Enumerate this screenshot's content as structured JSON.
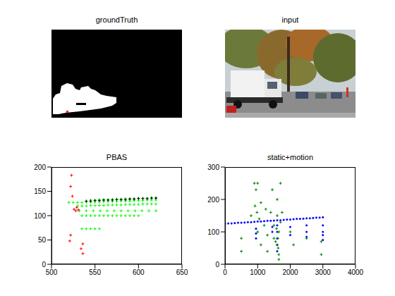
{
  "chart_data": [
    {
      "type": "image",
      "title": "groundTruth"
    },
    {
      "type": "image",
      "title": "input"
    },
    {
      "type": "scatter",
      "title": "PBAS",
      "xlim": [
        500,
        650
      ],
      "xticks": [
        500,
        550,
        600,
        650
      ],
      "ylim": [
        0,
        200
      ],
      "yticks": [
        0,
        50,
        100,
        150,
        200
      ],
      "series": [
        {
          "color": "#00ff00",
          "marker": "plus",
          "x": [
            520,
            525,
            530,
            535,
            540,
            545,
            550,
            555,
            560,
            565,
            570,
            575,
            580,
            585,
            590,
            595,
            600,
            605,
            610,
            615,
            620,
            530,
            535,
            540,
            545,
            550,
            555,
            560,
            565,
            570,
            575,
            580,
            585,
            590,
            595,
            600,
            605,
            610,
            615,
            620,
            532,
            540,
            548,
            556,
            564,
            572,
            580,
            588,
            596,
            604,
            612,
            620,
            535,
            540,
            545,
            550,
            555,
            560,
            565,
            570,
            575,
            580,
            585,
            590,
            595,
            600,
            535,
            540,
            545,
            550,
            555,
            545,
            550,
            555,
            560,
            565,
            570,
            575,
            580,
            585,
            590,
            595,
            600,
            605,
            610,
            615,
            620
          ],
          "values": [
            127,
            127,
            127,
            127,
            128,
            128,
            128,
            128,
            129,
            129,
            129,
            129,
            130,
            130,
            130,
            131,
            131,
            131,
            132,
            132,
            132,
            120,
            120,
            120,
            121,
            121,
            121,
            121,
            122,
            122,
            122,
            122,
            123,
            123,
            123,
            123,
            124,
            124,
            124,
            124,
            110,
            110,
            110,
            110,
            110,
            110,
            110,
            110,
            110,
            110,
            110,
            110,
            100,
            100,
            100,
            100,
            100,
            100,
            100,
            100,
            100,
            100,
            100,
            100,
            100,
            100,
            73,
            73,
            73,
            73,
            73,
            132,
            132,
            133,
            133,
            133,
            134,
            134,
            134,
            135,
            135,
            135,
            136,
            136,
            136,
            137,
            137
          ]
        },
        {
          "color": "#000000",
          "marker": "plus",
          "x": [
            540,
            545,
            550,
            555,
            560,
            565,
            570,
            575,
            580,
            585,
            590,
            595,
            600,
            605,
            610,
            615,
            620
          ],
          "values": [
            130,
            130,
            131,
            131,
            132,
            132,
            132,
            133,
            133,
            133,
            134,
            134,
            135,
            135,
            135,
            136,
            136
          ]
        },
        {
          "color": "#ff0000",
          "marker": "plus",
          "x": [
            523,
            522,
            524,
            526,
            528,
            522,
            521,
            536,
            534,
            536,
            529,
            531
          ],
          "values": [
            183,
            160,
            140,
            113,
            110,
            60,
            48,
            42,
            32,
            22,
            117,
            112
          ]
        }
      ]
    },
    {
      "type": "scatter",
      "title": "static+motion",
      "xlim": [
        0,
        4000
      ],
      "xticks": [
        0,
        1000,
        2000,
        3000,
        4000
      ],
      "ylim": [
        0,
        300
      ],
      "yticks": [
        0,
        100,
        200,
        300
      ],
      "series": [
        {
          "color": "#0000ff",
          "marker": "dot",
          "x": [
            0,
            100,
            200,
            300,
            400,
            500,
            600,
            700,
            800,
            900,
            1000,
            1100,
            1200,
            1300,
            1400,
            1500,
            1600,
            1700,
            1800,
            1900,
            2000,
            2100,
            2200,
            2300,
            2400,
            2500,
            2600,
            2700,
            2800,
            2900,
            3000,
            950,
            950,
            950,
            1450,
            1450,
            1600,
            1600,
            1600,
            1600,
            1600,
            2000,
            2000,
            2500,
            2500,
            2500,
            3000,
            3000,
            3000,
            3000
          ],
          "values": [
            125,
            126,
            126,
            127,
            128,
            128,
            129,
            130,
            130,
            131,
            132,
            132,
            133,
            134,
            134,
            135,
            136,
            136,
            137,
            138,
            138,
            139,
            140,
            140,
            141,
            142,
            142,
            143,
            144,
            144,
            145,
            110,
            95,
            80,
            115,
            100,
            120,
            100,
            80,
            60,
            40,
            115,
            90,
            120,
            100,
            85,
            120,
            100,
            90,
            75
          ]
        },
        {
          "color": "#008000",
          "marker": "plus",
          "x": [
            500,
            500,
            800,
            900,
            920,
            950,
            980,
            1000,
            1000,
            1050,
            1100,
            1100,
            1200,
            1250,
            1300,
            1300,
            1400,
            1450,
            1500,
            1500,
            1550,
            1580,
            1600,
            1600,
            1600,
            1620,
            1630,
            1650,
            1650,
            1650,
            1700,
            1700,
            1750,
            2000,
            2100,
            2500,
            2950,
            2950
          ],
          "values": [
            80,
            40,
            150,
            250,
            180,
            230,
            160,
            250,
            100,
            140,
            190,
            60,
            120,
            170,
            90,
            40,
            160,
            230,
            120,
            80,
            70,
            110,
            200,
            150,
            60,
            80,
            50,
            100,
            30,
            15,
            250,
            130,
            160,
            100,
            60,
            80,
            70,
            30
          ]
        }
      ]
    }
  ]
}
